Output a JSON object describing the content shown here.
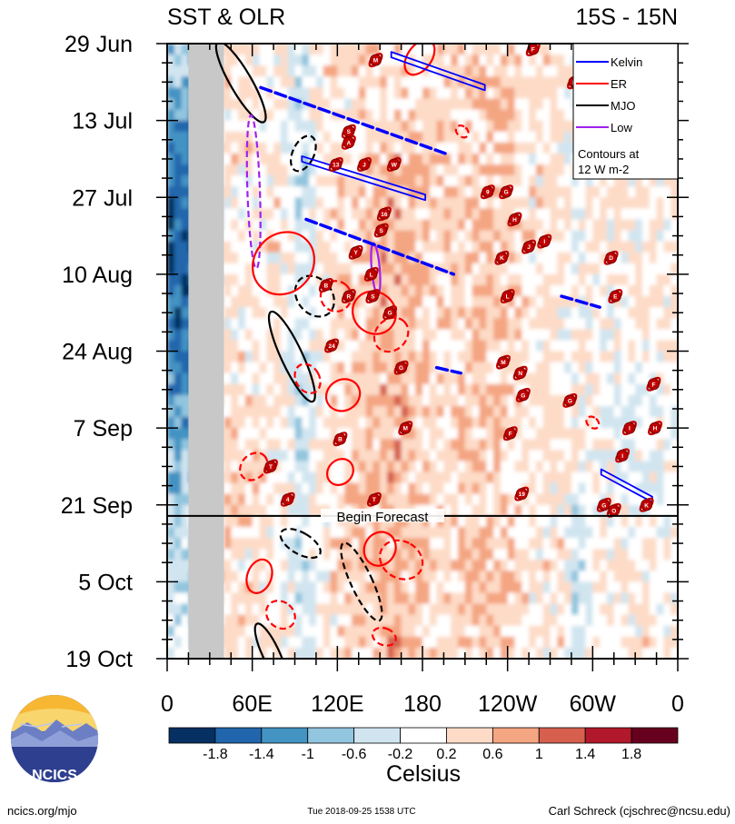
{
  "chart_data": {
    "type": "heatmap",
    "title_left": "SST & OLR",
    "title_right": "15S - 15N",
    "y_tick_labels": [
      "29 Jun",
      "13 Jul",
      "27 Jul",
      "10 Aug",
      "24 Aug",
      "7 Sep",
      "21 Sep",
      "5 Oct",
      "19 Oct"
    ],
    "x_tick_labels": [
      "0",
      "60E",
      "120E",
      "180",
      "120W",
      "60W",
      "0"
    ],
    "x_range_deg": [
      0,
      360
    ],
    "time_range_days": [
      0,
      112
    ],
    "forecast_label": "Begin Forecast",
    "forecast_day": 86,
    "colorbar": {
      "label": "Celsius",
      "tick_labels": [
        "-1.8",
        "-1.4",
        "-1",
        "-0.6",
        "-0.2",
        "0.2",
        "0.6",
        "1",
        "1.4",
        "1.8"
      ],
      "colors": [
        "#053061",
        "#2166ac",
        "#4393c3",
        "#92c5de",
        "#d1e5f0",
        "#ffffff",
        "#fddbc7",
        "#f4a582",
        "#d6604d",
        "#b2182b",
        "#67001f"
      ]
    },
    "legend": {
      "entries": [
        {
          "name": "Kelvin",
          "color": "#0000ff"
        },
        {
          "name": "ER",
          "color": "#ff0000"
        },
        {
          "name": "MJO",
          "color": "#000000"
        },
        {
          "name": "Low",
          "color": "#a020f0"
        }
      ],
      "note_line1": "Contours at",
      "note_line2": "12 W m-2"
    },
    "land_mask_lon": [
      15,
      40
    ],
    "contours": [
      {
        "type": "MJO",
        "lon": 52,
        "day": 7,
        "rx": 8,
        "ry": 13,
        "angle": -30,
        "dashed": false
      },
      {
        "type": "MJO",
        "lon": 96,
        "day": 20,
        "rx": 8,
        "ry": 5,
        "angle": 25,
        "dashed": true
      },
      {
        "type": "MJO",
        "lon": 104,
        "day": 46,
        "rx": 14,
        "ry": 6,
        "angle": -40,
        "dashed": true
      },
      {
        "type": "MJO",
        "lon": 88,
        "day": 57,
        "rx": 8,
        "ry": 14,
        "angle": -25,
        "dashed": false
      },
      {
        "type": "MJO",
        "lon": 94,
        "day": 91,
        "rx": 8,
        "ry": 6,
        "angle": -60,
        "dashed": true
      },
      {
        "type": "MJO",
        "lon": 137,
        "day": 98,
        "rx": 8,
        "ry": 12,
        "angle": -25,
        "dashed": true
      },
      {
        "type": "MJO",
        "lon": 73,
        "day": 111,
        "rx": 6,
        "ry": 9,
        "angle": -25,
        "dashed": false
      },
      {
        "type": "Low",
        "lon": 61,
        "day": 27,
        "rx": 4,
        "ry": 22,
        "angle": -2,
        "dashed": true
      },
      {
        "type": "Low",
        "lon": 147,
        "day": 41,
        "rx": 2,
        "ry": 7,
        "angle": -5,
        "dashed": false
      },
      {
        "type": "ER",
        "lon": 178,
        "day": 2.5,
        "rx": 16,
        "ry": 3,
        "angle": -55,
        "dashed": false
      },
      {
        "type": "ER",
        "lon": 82,
        "day": 40,
        "rx": 28,
        "ry": 8,
        "angle": -48,
        "dashed": false
      },
      {
        "type": "ER",
        "lon": 119,
        "day": 46,
        "rx": 12,
        "ry": 4,
        "angle": -50,
        "dashed": true
      },
      {
        "type": "ER",
        "lon": 146,
        "day": 49,
        "rx": 17,
        "ry": 6,
        "angle": -50,
        "dashed": false
      },
      {
        "type": "ER",
        "lon": 158,
        "day": 53,
        "rx": 15,
        "ry": 4,
        "angle": -45,
        "dashed": true
      },
      {
        "type": "ER",
        "lon": 99,
        "day": 61,
        "rx": 9,
        "ry": 4,
        "angle": -30,
        "dashed": true
      },
      {
        "type": "ER",
        "lon": 124,
        "day": 64,
        "rx": 14,
        "ry": 4,
        "angle": -30,
        "dashed": false
      },
      {
        "type": "ER",
        "lon": 61,
        "day": 77,
        "rx": 12,
        "ry": 3,
        "angle": -45,
        "dashed": true
      },
      {
        "type": "ER",
        "lon": 122,
        "day": 78,
        "rx": 11,
        "ry": 3,
        "angle": -45,
        "dashed": false
      },
      {
        "type": "ER",
        "lon": 150,
        "day": 92,
        "rx": 14,
        "ry": 4,
        "angle": -60,
        "dashed": false
      },
      {
        "type": "ER",
        "lon": 165,
        "day": 94,
        "rx": 15,
        "ry": 6,
        "angle": -60,
        "dashed": true
      },
      {
        "type": "ER",
        "lon": 65,
        "day": 97,
        "rx": 14,
        "ry": 3,
        "angle": -70,
        "dashed": false
      },
      {
        "type": "ER",
        "lon": 80,
        "day": 104,
        "rx": 10,
        "ry": 4,
        "angle": -50,
        "dashed": true
      },
      {
        "type": "ER",
        "lon": 153,
        "day": 108,
        "rx": 6,
        "ry": 3,
        "angle": -70,
        "dashed": true
      },
      {
        "type": "ER",
        "lon": 208,
        "day": 16,
        "rx": 3,
        "ry": 1.5,
        "angle": -50,
        "dashed": true
      },
      {
        "type": "ER",
        "lon": 300,
        "day": 69,
        "rx": 3,
        "ry": 1.5,
        "angle": -50,
        "dashed": true
      }
    ],
    "kelvin_waves": [
      {
        "lon1": 158,
        "day1": 2,
        "lon2": 224,
        "day2": 8,
        "dashed": false
      },
      {
        "lon1": 66,
        "day1": 8,
        "lon2": 196,
        "day2": 20,
        "dashed": true
      },
      {
        "lon1": 95,
        "day1": 21,
        "lon2": 182,
        "day2": 28,
        "dashed": false
      },
      {
        "lon1": 98,
        "day1": 32,
        "lon2": 202,
        "day2": 42,
        "dashed": true
      },
      {
        "lon1": 278,
        "day1": 46,
        "lon2": 305,
        "day2": 48,
        "dashed": true
      },
      {
        "lon1": 190,
        "day1": 59,
        "lon2": 207,
        "day2": 60,
        "dashed": true
      },
      {
        "lon1": 306,
        "day1": 78,
        "lon2": 342,
        "day2": 83,
        "dashed": false
      }
    ],
    "storms": [
      {
        "label": "M",
        "lon": 147,
        "day": 3
      },
      {
        "label": "F",
        "lon": 258,
        "day": 1
      },
      {
        "label": "D",
        "lon": 287,
        "day": 7
      },
      {
        "label": "S",
        "lon": 128,
        "day": 16
      },
      {
        "label": "A",
        "lon": 128,
        "day": 18
      },
      {
        "label": "13",
        "lon": 119,
        "day": 22
      },
      {
        "label": "J",
        "lon": 139,
        "day": 22
      },
      {
        "label": "W",
        "lon": 160,
        "day": 22
      },
      {
        "label": "9",
        "lon": 226,
        "day": 27
      },
      {
        "label": "G",
        "lon": 239,
        "day": 27
      },
      {
        "label": "16",
        "lon": 153,
        "day": 31
      },
      {
        "label": "S",
        "lon": 151,
        "day": 34
      },
      {
        "label": "H",
        "lon": 245,
        "day": 32
      },
      {
        "label": "Y",
        "lon": 133,
        "day": 38
      },
      {
        "label": "J",
        "lon": 255,
        "day": 37
      },
      {
        "label": "I",
        "lon": 266,
        "day": 36
      },
      {
        "label": "K",
        "lon": 236,
        "day": 39
      },
      {
        "label": "D",
        "lon": 313,
        "day": 39
      },
      {
        "label": "L",
        "lon": 144,
        "day": 42
      },
      {
        "label": "B",
        "lon": 112,
        "day": 44
      },
      {
        "label": "R",
        "lon": 128,
        "day": 46
      },
      {
        "label": "S",
        "lon": 145,
        "day": 46
      },
      {
        "label": "L",
        "lon": 240,
        "day": 46
      },
      {
        "label": "E",
        "lon": 316,
        "day": 46
      },
      {
        "label": "G",
        "lon": 157,
        "day": 49
      },
      {
        "label": "24",
        "lon": 116,
        "day": 55
      },
      {
        "label": "M",
        "lon": 237,
        "day": 58
      },
      {
        "label": "N",
        "lon": 249,
        "day": 60
      },
      {
        "label": "G",
        "lon": 165,
        "day": 59
      },
      {
        "label": "F",
        "lon": 343,
        "day": 62
      },
      {
        "label": "G",
        "lon": 251,
        "day": 64
      },
      {
        "label": "G",
        "lon": 284,
        "day": 65
      },
      {
        "label": "M",
        "lon": 168,
        "day": 70
      },
      {
        "label": "F",
        "lon": 242,
        "day": 71
      },
      {
        "label": "I",
        "lon": 326,
        "day": 70
      },
      {
        "label": "H",
        "lon": 344,
        "day": 70
      },
      {
        "label": "B",
        "lon": 122,
        "day": 72
      },
      {
        "label": "I",
        "lon": 321,
        "day": 75
      },
      {
        "label": "T",
        "lon": 73,
        "day": 77
      },
      {
        "label": "19",
        "lon": 250,
        "day": 82
      },
      {
        "label": "4",
        "lon": 85,
        "day": 83
      },
      {
        "label": "T",
        "lon": 146,
        "day": 83
      },
      {
        "label": "G",
        "lon": 308,
        "day": 84
      },
      {
        "label": "O",
        "lon": 315,
        "day": 85
      },
      {
        "label": "K",
        "lon": 338,
        "day": 84
      }
    ]
  },
  "footer": {
    "logo_text": "NCICS",
    "url": "ncics.org/mjo",
    "timestamp": "Tue 2018-09-25 1538 UTC",
    "author": "Carl Schreck (cjschrec@ncsu.edu)"
  }
}
